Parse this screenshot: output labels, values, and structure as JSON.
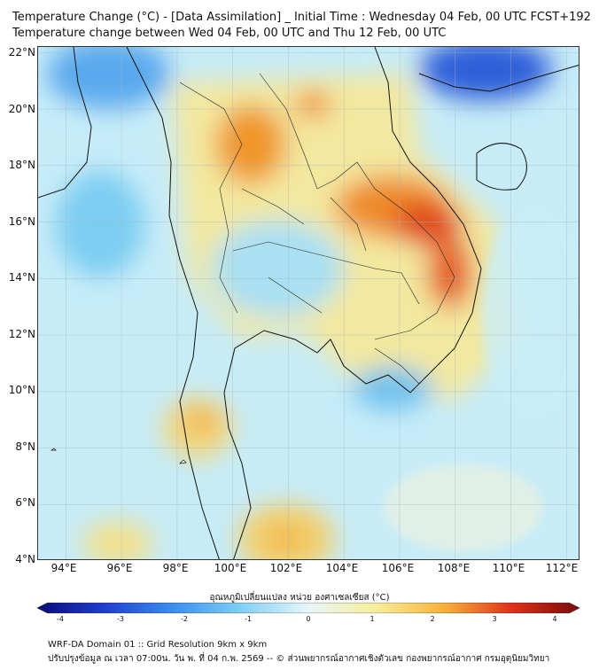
{
  "header": {
    "title_line1": "Temperature Change (°C) - [Data Assimilation] _ Initial Time : Wednesday 04 Feb, 00 UTC FCST+192",
    "title_line2": "Temperature change between Wed 04 Feb, 00 UTC and Thu 12 Feb, 00 UTC"
  },
  "map": {
    "lat_labels": [
      "22°N",
      "20°N",
      "18°N",
      "16°N",
      "14°N",
      "12°N",
      "10°N",
      "8°N",
      "6°N",
      "4°N"
    ],
    "lon_labels": [
      "94°E",
      "96°E",
      "98°E",
      "100°E",
      "102°E",
      "104°E",
      "106°E",
      "108°E",
      "110°E",
      "112°E"
    ],
    "lat_range": [
      4,
      22.2
    ],
    "lon_range": [
      93,
      112.5
    ],
    "grid": true,
    "field_hotspots": [
      {
        "name": "north-laos-warm",
        "lon": 105.5,
        "lat": 17.0,
        "delta": 2.8
      },
      {
        "name": "central-vietnam-warm",
        "lon": 107.8,
        "lat": 14.0,
        "delta": 3.0
      },
      {
        "name": "north-thailand-warm",
        "lon": 100.5,
        "lat": 19.0,
        "delta": 2.0
      },
      {
        "name": "mid-north-warm",
        "lon": 102.8,
        "lat": 20.0,
        "delta": 2.2
      },
      {
        "name": "central-thailand-cool",
        "lon": 101.0,
        "lat": 14.8,
        "delta": -1.0
      },
      {
        "name": "mekong-delta-cool",
        "lon": 105.5,
        "lat": 10.0,
        "delta": -1.2
      },
      {
        "name": "southeast-china-cold",
        "lon": 108.8,
        "lat": 22.0,
        "delta": -3.5
      },
      {
        "name": "northwest-myanmar-cold",
        "lon": 95.5,
        "lat": 22.0,
        "delta": -2.5
      },
      {
        "name": "andaman-cool",
        "lon": 95.0,
        "lat": 16.0,
        "delta": -1.5
      },
      {
        "name": "south-malay-warm",
        "lon": 101.8,
        "lat": 5.0,
        "delta": 1.8
      },
      {
        "name": "south-thailand-warm",
        "lon": 99.0,
        "lat": 9.0,
        "delta": 1.5
      }
    ]
  },
  "colorbar": {
    "title": "อุณหภูมิเปลี่ยนแปลง หน่วย องศาเซลเซียส (°C)",
    "ticks": [
      "-4",
      "-3",
      "-2",
      "-1",
      "0",
      "1",
      "2",
      "3",
      "4"
    ],
    "colors": [
      "#0a0a7a",
      "#1f3fd0",
      "#3a8ef0",
      "#7fd0f5",
      "#e8f6fa",
      "#f7ee9a",
      "#f7b23a",
      "#e0301a",
      "#7a0a0a"
    ]
  },
  "footer": {
    "line1": "WRF-DA Domain 01 :: Grid Resolution 9km x 9km",
    "line2": "ปรับปรุงข้อมูล ณ เวลา 07:00น. วัน พ. ที่ 04 ก.พ. 2569 -- © ส่วนพยากรณ์อากาศเชิงตัวเลข กองพยากรณ์อากาศ กรมอุตุนิยมวิทยา"
  }
}
